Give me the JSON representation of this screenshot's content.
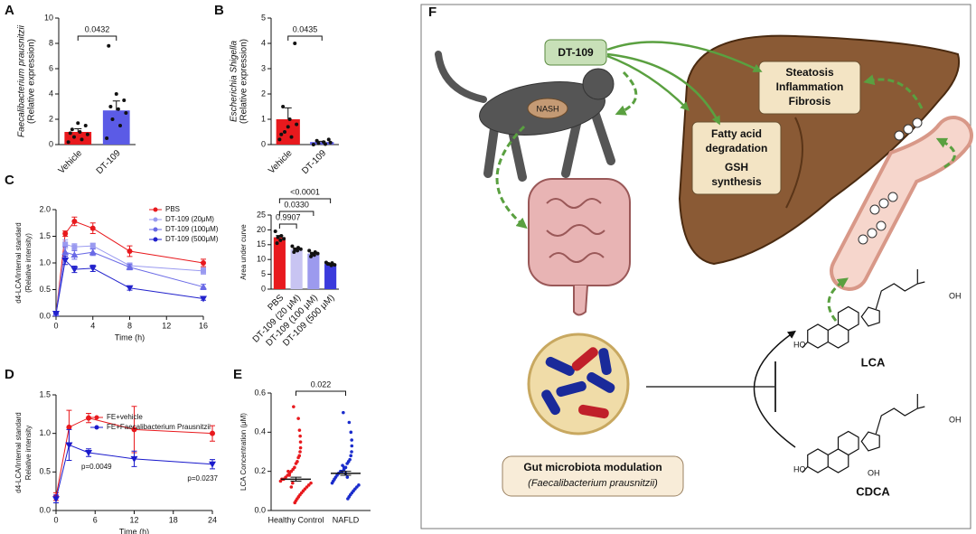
{
  "chart_data": [
    {
      "panel": "A",
      "type": "bar",
      "ylabel": [
        "Faecalibacterium prausnitzii",
        "(Relative expression)"
      ],
      "categories": [
        "Vehicle",
        "DT-109"
      ],
      "values": [
        1.0,
        2.7
      ],
      "errors": [
        0.25,
        0.75
      ],
      "colors": [
        "#e8191d",
        "#5b5be6"
      ],
      "points": [
        [
          0.2,
          0.4,
          0.6,
          0.8,
          1.0,
          1.2,
          1.5,
          1.7,
          0.9
        ],
        [
          0.5,
          1.5,
          2.0,
          2.5,
          2.8,
          3.0,
          3.5,
          4.0,
          7.8
        ]
      ],
      "ylim": [
        0,
        10
      ],
      "yticks": [
        0,
        2,
        4,
        6,
        8,
        10
      ],
      "annotations": [
        "0.0432"
      ]
    },
    {
      "panel": "B",
      "type": "bar",
      "ylabel": [
        "Escherichia Shigella",
        "(Relative expression)"
      ],
      "categories": [
        "Vehicle",
        "DT-109"
      ],
      "values": [
        1.0,
        0.1
      ],
      "errors": [
        0.45,
        0.03
      ],
      "colors": [
        "#e8191d",
        "#5b5be6"
      ],
      "points": [
        [
          0.2,
          0.3,
          0.5,
          0.8,
          1.0,
          1.5,
          4.0,
          0.7,
          0.4
        ],
        [
          0,
          0.02,
          0.05,
          0.08,
          0.1,
          0.15,
          0.2
        ]
      ],
      "ylim": [
        0,
        5
      ],
      "yticks": [
        0,
        1,
        2,
        3,
        4,
        5
      ],
      "annotations": [
        "0.0435"
      ]
    },
    {
      "panel": "C",
      "type": "line",
      "ylabel": [
        "d4-LCA/Internal standard",
        "(Relative intensity)"
      ],
      "xlabel": "Time (h)",
      "x": [
        0,
        1,
        2,
        4,
        8,
        16
      ],
      "xlim": [
        0,
        16
      ],
      "xticks": [
        0,
        4,
        8,
        12,
        16
      ],
      "ylim": [
        0,
        2
      ],
      "yticks": [
        {
          "value": 0,
          "label": "0.0"
        },
        0.5,
        {
          "value": 1,
          "label": "1.0"
        },
        1.5,
        {
          "value": 2,
          "label": "2.0"
        }
      ],
      "series": [
        {
          "name": "PBS",
          "color": "#e8191d",
          "marker": "circle",
          "values": [
            0.05,
            1.55,
            1.78,
            1.65,
            1.22,
            1.0
          ],
          "errors": [
            0,
            0.05,
            0.08,
            0.1,
            0.1,
            0.07
          ]
        },
        {
          "name": "DT-109 (20μM)",
          "color": "#9a9af0",
          "marker": "square",
          "values": [
            0.05,
            1.35,
            1.3,
            1.32,
            0.95,
            0.85
          ],
          "errors": [
            0,
            0.08,
            0.06,
            0.05,
            0.05,
            0.06
          ]
        },
        {
          "name": "DT-109 (100μM)",
          "color": "#6a6ae6",
          "marker": "triangle",
          "values": [
            0.05,
            1.2,
            1.15,
            1.2,
            0.92,
            0.55
          ],
          "errors": [
            0,
            0.1,
            0.08,
            0.06,
            0.05,
            0.05
          ]
        },
        {
          "name": "DT-109 (500μM)",
          "color": "#2222cc",
          "marker": "triangle-down",
          "values": [
            0.05,
            1.05,
            0.88,
            0.9,
            0.53,
            0.33
          ],
          "errors": [
            0,
            0.08,
            0.06,
            0.06,
            0.04,
            0.03
          ]
        }
      ]
    },
    {
      "type": "bar",
      "ylabel": [
        "Area under curve"
      ],
      "categories": [
        "PBS",
        "DT-109 (20 μM)",
        "DT-109 (100 μM)",
        "DT-109 (500 μM)"
      ],
      "values": [
        17.5,
        13.5,
        12,
        8.5
      ],
      "errors": [
        0.6,
        0.3,
        0.3,
        0.2
      ],
      "colors": [
        "#e8191d",
        "#c8c4f2",
        "#9c9aee",
        "#3b3bdc"
      ],
      "points": [
        [
          19.5,
          18,
          17.5,
          17,
          16.5,
          15.5
        ],
        [
          14.5,
          14,
          13.5,
          13.5,
          13,
          12.5
        ],
        [
          13,
          12.5,
          12,
          12,
          11.5,
          11
        ],
        [
          9,
          8.8,
          8.5,
          8.2,
          8,
          8.5
        ]
      ],
      "ylim": [
        0,
        25
      ],
      "yticks": [
        0,
        5,
        10,
        15,
        20,
        25
      ],
      "annotations": [
        "0.9907",
        "0.0330",
        "<0.0001"
      ]
    },
    {
      "panel": "D",
      "type": "line",
      "ylabel": [
        "d4-LCA/Internal standard",
        "Relative intensity"
      ],
      "xlabel": "Time (h)",
      "x": [
        0,
        2,
        5,
        12,
        24
      ],
      "xlim": [
        0,
        24
      ],
      "xticks": [
        0,
        6,
        12,
        18,
        24
      ],
      "ylim": [
        0,
        1.5
      ],
      "yticks": [
        {
          "value": 0,
          "label": "0.0"
        },
        0.5,
        {
          "value": 1,
          "label": "1.0"
        },
        1.5
      ],
      "series": [
        {
          "name": "FE+vehicle",
          "color": "#e8191d",
          "marker": "circle",
          "values": [
            0.18,
            1.08,
            1.2,
            1.05,
            1.0
          ],
          "errors": [
            0.05,
            0.22,
            0.06,
            0.3,
            0.1
          ]
        },
        {
          "name": "FE+Faecalibacterium Prausnitzii",
          "color": "#1a1acc",
          "marker": "triangle-down",
          "values": [
            0.15,
            0.85,
            0.75,
            0.67,
            0.6
          ],
          "errors": [
            0.05,
            0.2,
            0.05,
            0.1,
            0.06
          ]
        }
      ],
      "annotations": [
        "p=0.0049",
        "p=0.0237"
      ]
    },
    {
      "panel": "E",
      "type": "strip",
      "ylabel": [
        "LCA Concentration (μM)"
      ],
      "categories": [
        "Healthy Control",
        "NAFLD"
      ],
      "values": [
        0.16,
        0.19
      ],
      "errors": [
        0.01,
        0.01
      ],
      "colors": [
        "#e8191d",
        "#1a2ccc"
      ],
      "points": [
        [
          0.53,
          0.47,
          0.41,
          0.38,
          0.35,
          0.32,
          0.3,
          0.28,
          0.27,
          0.25,
          0.24,
          0.22,
          0.21,
          0.2,
          0.19,
          0.18,
          0.17,
          0.16,
          0.16,
          0.15,
          0.14,
          0.13,
          0.12,
          0.11,
          0.1,
          0.09,
          0.08,
          0.07,
          0.06,
          0.05,
          0.04,
          0.14,
          0.12,
          0.18,
          0.2
        ],
        [
          0.5,
          0.45,
          0.4,
          0.36,
          0.33,
          0.3,
          0.28,
          0.26,
          0.25,
          0.24,
          0.22,
          0.21,
          0.2,
          0.2,
          0.19,
          0.18,
          0.17,
          0.16,
          0.15,
          0.14,
          0.13,
          0.12,
          0.11,
          0.1,
          0.09,
          0.08,
          0.07,
          0.06,
          0.17,
          0.19,
          0.22,
          0.23
        ]
      ],
      "ylim": [
        0,
        0.6
      ],
      "yticks": [
        {
          "value": 0,
          "label": "0.0"
        },
        0.2,
        0.4,
        0.6
      ],
      "annotations": [
        "0.022"
      ]
    }
  ],
  "diagram": {
    "panel": "F",
    "drug": "DT-109",
    "disease": "NASH",
    "liver_effects": [
      "Steatosis",
      "Inflammation",
      "Fibrosis"
    ],
    "liver_functions": [
      "Fatty acid",
      "degradation",
      "GSH",
      "synthesis"
    ],
    "microbiota": [
      "Gut microbiota modulation",
      "(Faecalibacterium prausnitzii)"
    ],
    "molecules": [
      {
        "name": "LCA",
        "groups": [
          "OH",
          "HO"
        ]
      },
      {
        "name": "CDCA",
        "groups": [
          "OH",
          "HO",
          "OH"
        ]
      }
    ]
  }
}
